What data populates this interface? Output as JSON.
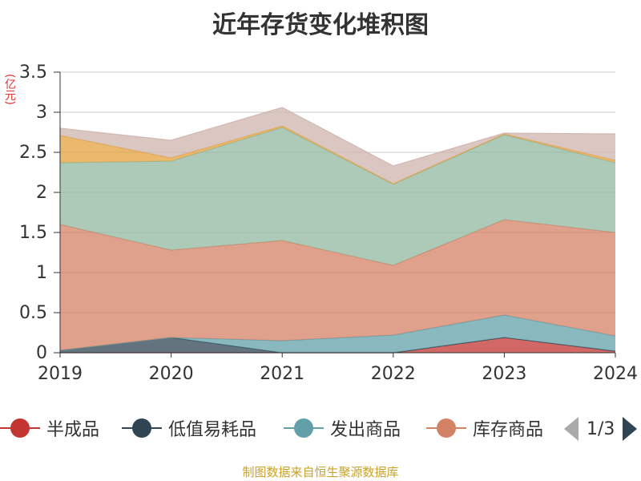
{
  "chart_data": {
    "type": "area",
    "title": "近年存货变化堆积图",
    "unit": "(亿元)",
    "x": [
      "2019",
      "2020",
      "2021",
      "2022",
      "2023",
      "2024"
    ],
    "ylim": [
      0,
      3.5
    ],
    "yticks": [
      "0",
      "0.5",
      "1",
      "1.5",
      "2",
      "2.5",
      "3",
      "3.5"
    ],
    "stacked": true,
    "grid": true,
    "series": [
      {
        "name": "半成品",
        "values": [
          0,
          0,
          0,
          0,
          0.19,
          0.02
        ],
        "color": "#c23531"
      },
      {
        "name": "低值易耗品",
        "values": [
          0.03,
          0.19,
          0,
          0,
          0,
          0
        ],
        "color": "#2f4554"
      },
      {
        "name": "发出商品",
        "values": [
          0,
          0,
          0.15,
          0.22,
          0.28,
          0.19
        ],
        "color": "#61a0a8"
      },
      {
        "name": "库存商品",
        "values": [
          1.57,
          1.09,
          1.25,
          0.87,
          1.19,
          1.29
        ],
        "color": "#d48265"
      },
      {
        "series_index": 5,
        "values": [
          0.77,
          1.11,
          1.41,
          1.01,
          1.06,
          0.87
        ],
        "color": "#91b8a0"
      },
      {
        "series_index": 6,
        "values": [
          0.34,
          0.04,
          0.02,
          0.01,
          0.01,
          0.03
        ],
        "color": "#e3a23e"
      },
      {
        "series_index": 7,
        "values": [
          0.09,
          0.22,
          0.23,
          0.22,
          0.01,
          0.33
        ],
        "color": "#cfb4ad"
      }
    ]
  },
  "legend": {
    "items": [
      {
        "label": "半成品",
        "color": "#c23531"
      },
      {
        "label": "低值易耗品",
        "color": "#2f4554"
      },
      {
        "label": "发出商品",
        "color": "#61a0a8"
      },
      {
        "label": "库存商品",
        "color": "#d48265"
      }
    ],
    "page": "1/3"
  },
  "source": "制图数据来自恒生聚源数据库"
}
